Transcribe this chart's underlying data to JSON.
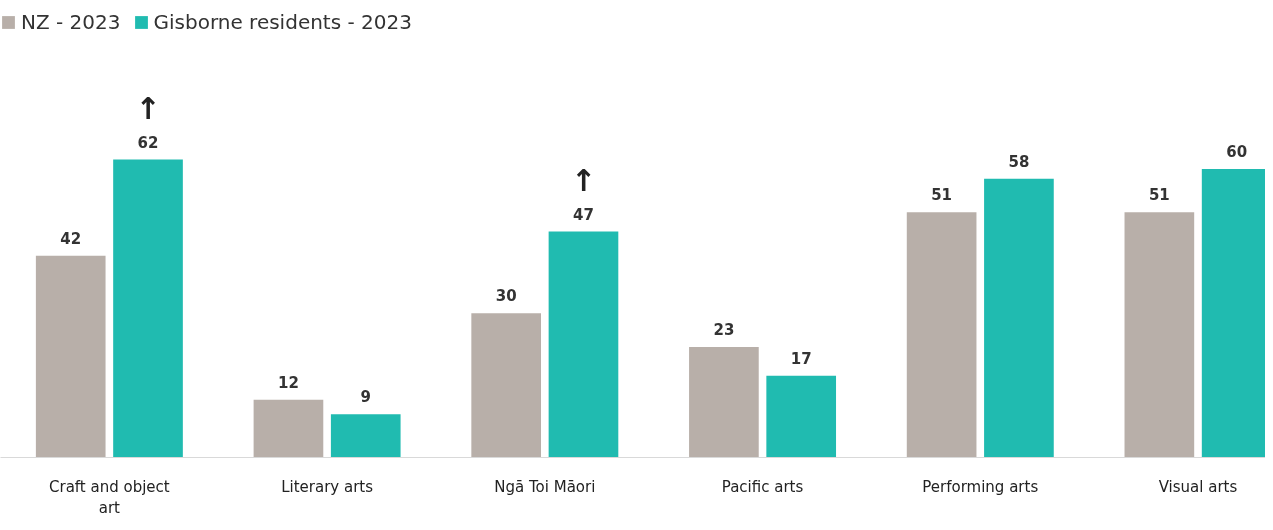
{
  "chart_data": {
    "type": "bar",
    "categories": [
      "Craft and object art",
      "Literary arts",
      "Ngā Toi Māori",
      "Pacific arts",
      "Performing arts",
      "Visual arts"
    ],
    "series": [
      {
        "name": "NZ - 2023",
        "color": "#b8afa9",
        "values": [
          42,
          12,
          30,
          23,
          51,
          51
        ]
      },
      {
        "name": "Gisborne residents - 2023",
        "color": "#20bbb0",
        "values": [
          62,
          9,
          47,
          17,
          58,
          60
        ]
      }
    ],
    "data_labels": true,
    "legend": "top left",
    "grid": false,
    "tick_labels": "x",
    "annotations": [
      {
        "text": "↑",
        "x": "Craft and object art",
        "y": 62
      },
      {
        "text": "↑",
        "x": "Ngā Toi Māori",
        "y": 47
      }
    ]
  }
}
